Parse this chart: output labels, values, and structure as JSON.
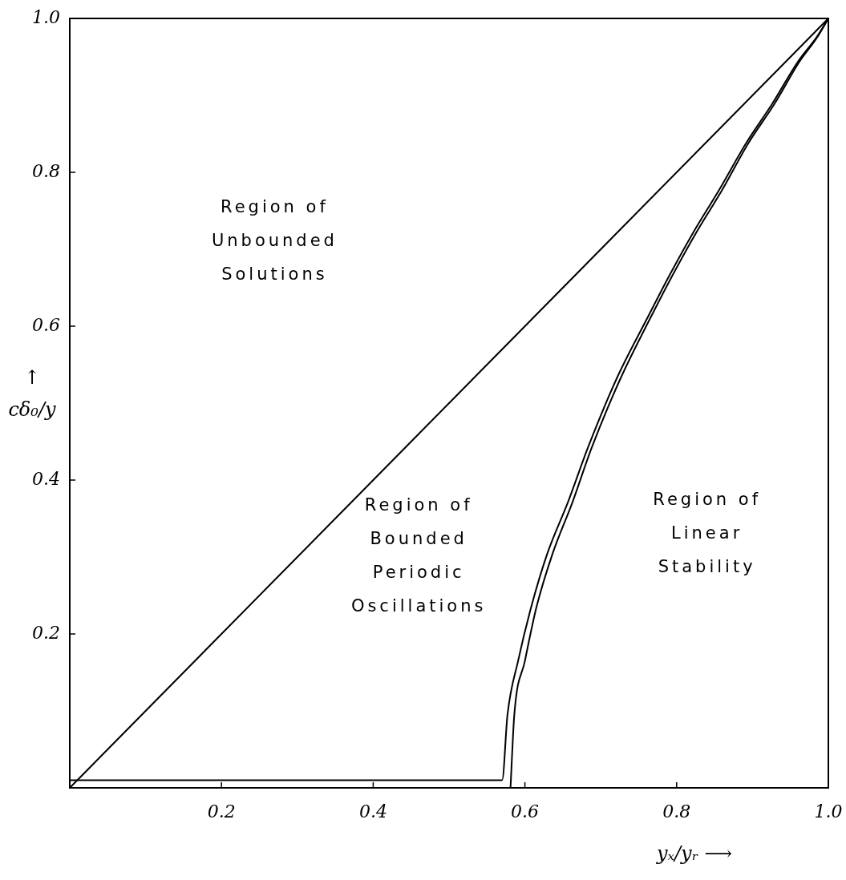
{
  "chart_data": {
    "type": "line",
    "xlabel": "yₓ/yᵣ ⟶",
    "ylabel": "↑ cδ₀/y",
    "xlim": [
      0,
      1
    ],
    "ylim": [
      0,
      1
    ],
    "xticks": [
      0.2,
      0.4,
      0.6,
      0.8,
      {
        "value": 1,
        "label": "1.0"
      }
    ],
    "yticks": [
      0.2,
      0.4,
      0.6,
      0.8,
      {
        "value": 1,
        "label": "1.0"
      }
    ],
    "marker": "none",
    "series": [
      {
        "color": "#000000",
        "x": [
          0,
          1
        ],
        "values": [
          0,
          1
        ]
      },
      {
        "color": "#000000",
        "x": [
          0,
          0.57,
          0.577,
          0.591,
          0.608,
          0.629,
          0.657,
          0.683,
          0.721,
          0.76,
          0.791,
          0.822,
          0.856,
          0.891,
          0.926,
          0.96,
          0.984,
          1
        ],
        "values": [
          0.01,
          0.01,
          0.095,
          0.165,
          0.234,
          0.303,
          0.372,
          0.442,
          0.532,
          0.608,
          0.667,
          0.722,
          0.777,
          0.837,
          0.889,
          0.944,
          0.975,
          1
        ]
      },
      {
        "color": "#000000",
        "x": [
          0.581,
          0.586,
          0.6,
          0.615,
          0.636,
          0.663,
          0.688,
          0.726,
          0.764,
          0.795,
          0.826,
          0.86,
          0.894,
          0.929,
          0.962,
          0.985,
          1
        ],
        "values": [
          0,
          0.095,
          0.165,
          0.234,
          0.303,
          0.372,
          0.442,
          0.532,
          0.608,
          0.667,
          0.722,
          0.777,
          0.837,
          0.889,
          0.944,
          0.975,
          1
        ]
      }
    ],
    "annotations": [
      "Region of Unbounded Solutions",
      "Region of Bounded Periodic Oscillations",
      "Region of Linear Stability"
    ]
  }
}
